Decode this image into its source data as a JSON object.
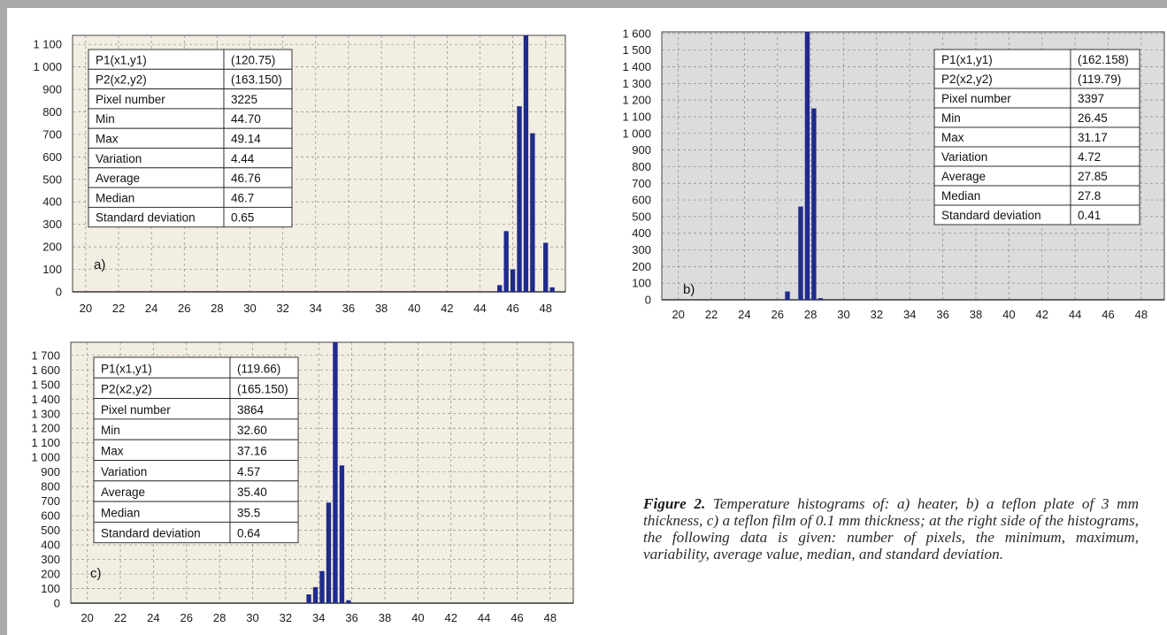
{
  "caption": {
    "label": "Figure 2.",
    "text": " Temperature histograms of: a) heater, b) a teflon plate of 3 mm thickness, c) a teflon film of 0.1 mm thickness; at the right side of the histograms, the following data is given: number of pixels, the minimum, maximum, variability, average value, median, and standard deviation."
  },
  "chart_data": [
    {
      "id": "a",
      "type": "bar",
      "panel_label": "a)",
      "background": "#f3eee2",
      "bar_color": "#1f2a8c",
      "grid": true,
      "x_ticks": [
        "20",
        "22",
        "24",
        "26",
        "28",
        "30",
        "32",
        "34",
        "36",
        "38",
        "40",
        "42",
        "44",
        "46",
        "48"
      ],
      "y_ticks": [
        "0",
        "100",
        "200",
        "300",
        "400",
        "500",
        "600",
        "700",
        "800",
        "900",
        "1 000",
        "1 100"
      ],
      "xlim": [
        19.2,
        49.2
      ],
      "ylim": [
        0,
        1140
      ],
      "x": [
        45.2,
        45.6,
        46.0,
        46.4,
        46.8,
        47.2,
        47.6,
        48.0,
        48.4,
        48.8
      ],
      "values": [
        30,
        270,
        100,
        825,
        1140,
        705,
        0,
        218,
        20,
        0
      ],
      "values_sorted_note": "",
      "stats": [
        [
          "P1(x1,y1)",
          "(120.75)"
        ],
        [
          "P2(x2,y2)",
          "(163.150)"
        ],
        [
          "Pixel number",
          "3225"
        ],
        [
          "Min",
          "44.70"
        ],
        [
          "Max",
          "49.14"
        ],
        [
          "Variation",
          "4.44"
        ],
        [
          "Average",
          "46.76"
        ],
        [
          "Median",
          "46.7"
        ],
        [
          "Standard deviation",
          "0.65"
        ]
      ]
    },
    {
      "id": "b",
      "type": "bar",
      "panel_label": "b)",
      "background": "#dcdcdc",
      "bar_color": "#1f2a8c",
      "grid": true,
      "x_ticks": [
        "20",
        "22",
        "24",
        "26",
        "28",
        "30",
        "32",
        "34",
        "36",
        "38",
        "40",
        "42",
        "44",
        "46",
        "48"
      ],
      "y_ticks": [
        "0",
        "100",
        "200",
        "300",
        "400",
        "500",
        "600",
        "700",
        "800",
        "900",
        "1 000",
        "1 100",
        "1 200",
        "1 300",
        "1 400",
        "1 500",
        "1 600"
      ],
      "xlim": [
        19.0,
        49.4
      ],
      "ylim": [
        0,
        1610
      ],
      "x": [
        26.6,
        27.0,
        27.4,
        27.8,
        28.2,
        28.6,
        29.0
      ],
      "values": [
        50,
        0,
        560,
        1610,
        1150,
        10,
        0
      ],
      "stats": [
        [
          "P1(x1,y1)",
          "(162.158)"
        ],
        [
          "P2(x2,y2)",
          "(119.79)"
        ],
        [
          "Pixel number",
          "3397"
        ],
        [
          "Min",
          "26.45"
        ],
        [
          "Max",
          "31.17"
        ],
        [
          "Variation",
          "4.72"
        ],
        [
          "Average",
          "27.85"
        ],
        [
          "Median",
          "27.8"
        ],
        [
          "Standard deviation",
          "0.41"
        ]
      ]
    },
    {
      "id": "c",
      "type": "bar",
      "panel_label": "c)",
      "background": "#f3eee2",
      "bar_color": "#1f2a8c",
      "grid": true,
      "x_ticks": [
        "20",
        "22",
        "24",
        "26",
        "28",
        "30",
        "32",
        "34",
        "36",
        "38",
        "40",
        "42",
        "44",
        "46",
        "48"
      ],
      "y_ticks": [
        "0",
        "100",
        "200",
        "300",
        "400",
        "500",
        "600",
        "700",
        "800",
        "900",
        "1 000",
        "1 100",
        "1 200",
        "1 300",
        "1 400",
        "1 500",
        "1 600",
        "1 700"
      ],
      "xlim": [
        19.0,
        49.4
      ],
      "ylim": [
        0,
        1790
      ],
      "x": [
        33.4,
        33.8,
        34.2,
        34.6,
        35.0,
        35.4,
        35.8,
        36.2
      ],
      "values": [
        60,
        110,
        220,
        690,
        1790,
        945,
        20,
        0
      ],
      "stats": [
        [
          "P1(x1,y1)",
          "(119.66)"
        ],
        [
          "P2(x2,y2)",
          "(165.150)"
        ],
        [
          "Pixel number",
          "3864"
        ],
        [
          "Min",
          "32.60"
        ],
        [
          "Max",
          "37.16"
        ],
        [
          "Variation",
          "4.57"
        ],
        [
          "Average",
          "35.40"
        ],
        [
          "Median",
          "35.5"
        ],
        [
          "Standard deviation",
          "0.64"
        ]
      ]
    }
  ]
}
